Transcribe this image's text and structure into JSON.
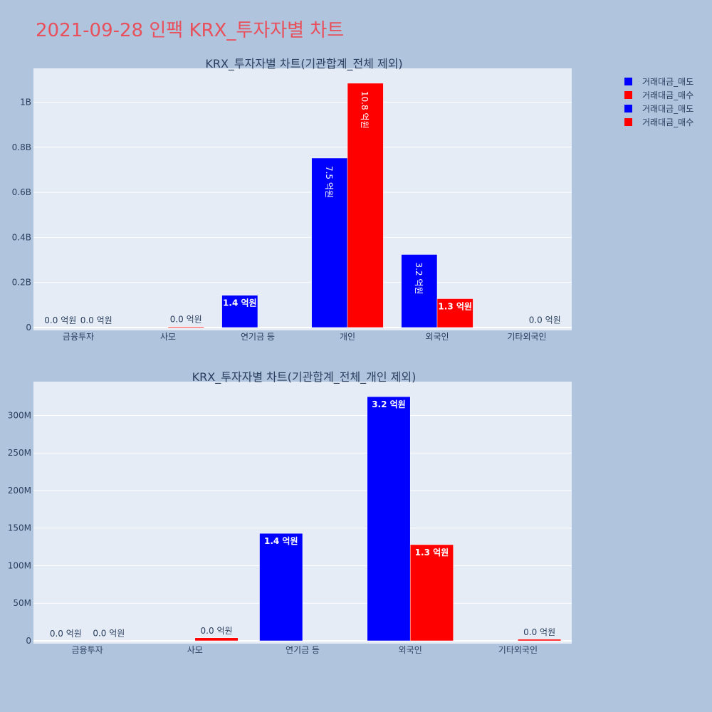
{
  "page": {
    "title": "2021-09-28 인팩 KRX_투자자별 차트"
  },
  "colors": {
    "sell": "#0000ff",
    "buy": "#ff0000",
    "plot_bg": "#e5ecf6",
    "paper_bg": "#b0c4de",
    "title": "#e8505b"
  },
  "legend": {
    "placement": "top-right",
    "items": [
      {
        "name": "거래대금_매도",
        "color": "#0000ff"
      },
      {
        "name": "거래대금_매수",
        "color": "#ff0000"
      },
      {
        "name": "거래대금_매도",
        "color": "#0000ff"
      },
      {
        "name": "거래대금_매수",
        "color": "#ff0000"
      }
    ]
  },
  "chart_data": [
    {
      "type": "bar",
      "title": "KRX_투자자별 차트(기관합계_전체 제외)",
      "categories": [
        "금융투자",
        "사모",
        "연기금 등",
        "개인",
        "외국인",
        "기타외국인"
      ],
      "ylim": [
        0,
        1.15
      ],
      "yticks": [
        0,
        0.2,
        0.4,
        0.6,
        0.8,
        1.0
      ],
      "ytick_labels": [
        "0",
        "0.2B",
        "0.4B",
        "0.6B",
        "0.8B",
        "1B"
      ],
      "grid": true,
      "label_rotate": true,
      "series": [
        {
          "name": "거래대금_매도",
          "color": "#0000ff",
          "values": [
            0,
            null,
            0.143,
            0.752,
            0.324,
            null
          ],
          "labels": [
            "0.0 억원",
            "",
            "1.4 억원",
            "7.5 억원",
            "3.2 억원",
            ""
          ]
        },
        {
          "name": "거래대금_매수",
          "color": "#ff0000",
          "values": [
            0,
            0.004,
            null,
            1.084,
            0.128,
            0.001
          ],
          "labels": [
            "0.0 억원",
            "0.0 억원",
            "",
            "10.8 억원",
            "1.3 억원",
            "0.0 억원"
          ]
        }
      ]
    },
    {
      "type": "bar",
      "title": "KRX_투자자별 차트(기관합계_전체_개인 제외)",
      "categories": [
        "금융투자",
        "사모",
        "연기금 등",
        "외국인",
        "기타외국인"
      ],
      "ylim": [
        0,
        345
      ],
      "yticks": [
        0,
        50,
        100,
        150,
        200,
        250,
        300
      ],
      "ytick_labels": [
        "0",
        "50M",
        "100M",
        "150M",
        "200M",
        "250M",
        "300M"
      ],
      "grid": true,
      "label_rotate": false,
      "series": [
        {
          "name": "거래대금_매도",
          "color": "#0000ff",
          "values": [
            0,
            null,
            143,
            325,
            null
          ],
          "labels": [
            "0.0 억원",
            "",
            "1.4 억원",
            "3.2 억원",
            ""
          ]
        },
        {
          "name": "거래대금_매수",
          "color": "#ff0000",
          "values": [
            0.5,
            4,
            null,
            128,
            2
          ],
          "labels": [
            "0.0 억원",
            "0.0 억원",
            "",
            "1.3 억원",
            "0.0 억원"
          ]
        }
      ]
    }
  ]
}
